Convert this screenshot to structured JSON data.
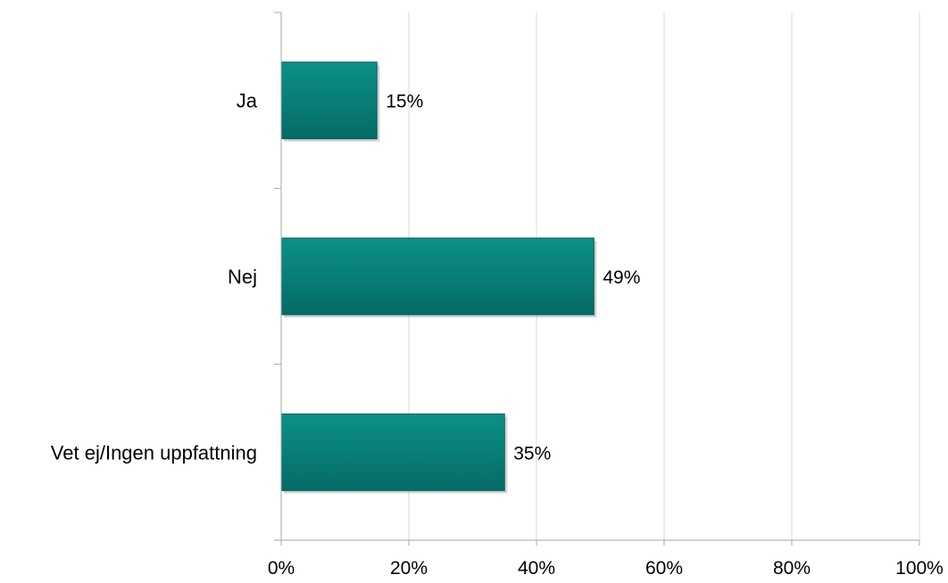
{
  "chart_data": {
    "type": "bar",
    "orientation": "horizontal",
    "categories": [
      "Ja",
      "Nej",
      "Vet ej/Ingen uppfattning"
    ],
    "values": [
      15,
      49,
      35
    ],
    "data_labels": [
      "15%",
      "49%",
      "35%"
    ],
    "x_ticks": [
      "0%",
      "20%",
      "40%",
      "60%",
      "80%",
      "100%"
    ],
    "xlim": [
      0,
      100
    ],
    "title": "",
    "xlabel": "",
    "ylabel": "",
    "grid": "vertical",
    "legend": "none",
    "colors": {
      "bar": "#087E78",
      "bar_edge": "#055F5B",
      "grid": "#D9D9D9",
      "axis": "#A6A6A6"
    }
  }
}
